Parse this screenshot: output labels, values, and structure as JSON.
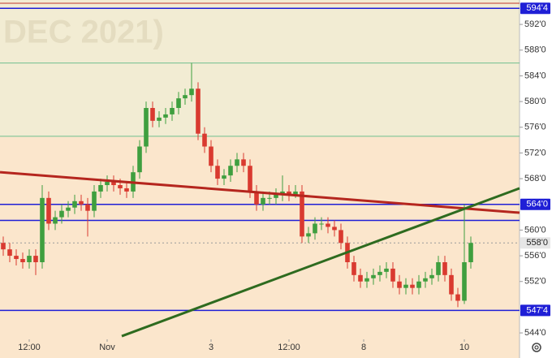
{
  "chart_data": {
    "type": "candlestick",
    "watermark": "DEC 2021)",
    "xlim": [
      -0.5,
      79.5
    ],
    "ylim": [
      543.0,
      595.8
    ],
    "xticks": [
      {
        "value": 4,
        "label": "12:00"
      },
      {
        "value": 16,
        "label": "Nov"
      },
      {
        "value": 32,
        "label": "3"
      },
      {
        "value": 44,
        "label": "12:00"
      },
      {
        "value": 55.5,
        "label": "8"
      },
      {
        "value": 71,
        "label": "10"
      }
    ],
    "yticks": [
      {
        "value": 544,
        "label": "544'0"
      },
      {
        "value": 552,
        "label": "552'0"
      },
      {
        "value": 556,
        "label": "556'0"
      },
      {
        "value": 560,
        "label": "560'0"
      },
      {
        "value": 568,
        "label": "568'0"
      },
      {
        "value": 572,
        "label": "572'0"
      },
      {
        "value": 576,
        "label": "576'0"
      },
      {
        "value": 580,
        "label": "580'0"
      },
      {
        "value": 584,
        "label": "584'0"
      },
      {
        "value": 588,
        "label": "588'0"
      },
      {
        "value": 592,
        "label": "592'0"
      }
    ],
    "up_color": "#3f9f3f",
    "down_color": "#d93a30",
    "open": [
      558,
      557,
      556,
      555.5,
      555,
      556,
      555,
      565,
      561,
      562,
      563,
      563.5,
      564.5,
      564,
      563,
      566,
      567,
      567.5,
      567,
      566.5,
      566,
      569,
      573,
      579,
      577,
      577.5,
      578,
      579,
      580.5,
      581,
      582,
      575,
      573,
      570,
      568,
      568.5,
      570,
      571,
      570,
      566,
      564,
      565,
      565,
      565.5,
      566,
      565.5,
      566,
      559,
      559.5,
      561,
      561,
      560.5,
      560,
      558,
      555,
      553,
      552,
      552.5,
      553,
      553.5,
      554,
      552,
      551,
      551.5,
      551,
      552,
      552.5,
      553,
      555,
      553,
      550,
      549,
      555
    ],
    "high": [
      559,
      558,
      557,
      556.5,
      557,
      557,
      567,
      566,
      563,
      564,
      564.5,
      565.5,
      565.5,
      565,
      567,
      568,
      568.5,
      568.5,
      568,
      567.5,
      570,
      574,
      580,
      580,
      578.5,
      579,
      580,
      581.5,
      582,
      586,
      583,
      576,
      574,
      571,
      569.5,
      571,
      572,
      572,
      571,
      567,
      566,
      566,
      566.5,
      568.5,
      567,
      567,
      567,
      560.5,
      562,
      562,
      562,
      561.5,
      561,
      559,
      556,
      554,
      553.5,
      554,
      554.5,
      555,
      555,
      553,
      552.5,
      552.5,
      553,
      553.5,
      554,
      556,
      556,
      554,
      551,
      564,
      559
    ],
    "low": [
      556,
      555,
      554.5,
      554,
      554,
      553,
      554,
      560,
      560,
      561,
      562,
      562.5,
      563,
      559,
      562,
      565,
      566,
      566,
      565.5,
      565,
      565,
      568,
      572,
      576,
      576,
      576.5,
      577,
      578,
      579.5,
      580,
      574,
      572,
      569,
      567,
      567,
      567.5,
      569,
      569,
      565,
      563,
      563,
      564,
      564,
      564.5,
      564.5,
      565,
      558,
      558,
      558.5,
      560,
      559.5,
      559,
      557,
      554,
      552,
      551,
      551,
      551.5,
      552,
      552.5,
      551,
      550,
      550,
      550,
      550,
      551,
      551.5,
      552,
      552,
      549,
      548,
      548.5,
      554
    ],
    "close": [
      557,
      556,
      555.5,
      555,
      556,
      555,
      565,
      561,
      562,
      563,
      563.5,
      564.5,
      564,
      563,
      566,
      567,
      567.5,
      567,
      566.5,
      566,
      569,
      573,
      579,
      577,
      577.5,
      578,
      579,
      580.5,
      581,
      582,
      575,
      573,
      570,
      568,
      568.5,
      570,
      571,
      570,
      566,
      564,
      565,
      565,
      565.5,
      566,
      565.5,
      566,
      559,
      559.5,
      561,
      561,
      560.5,
      560,
      558,
      555,
      553,
      552,
      552.5,
      553,
      553.5,
      554,
      552,
      551,
      551.5,
      551,
      552,
      552.5,
      553,
      555,
      553,
      550,
      549,
      555,
      558
    ],
    "hlines": [
      {
        "value": 595.3,
        "color": "#c0392b"
      },
      {
        "value": 594.5,
        "label": "594'4",
        "color": "#1f1fd6"
      },
      {
        "value": 586,
        "color": "#6fbf8f"
      },
      {
        "value": 574.6,
        "color": "#6fbf8f"
      },
      {
        "value": 564,
        "label": "564'0",
        "color": "#1f1fd6"
      },
      {
        "value": 561.5,
        "color": "#1f1fd6"
      },
      {
        "value": 558,
        "label": "558'0",
        "color": "#9a9a9a",
        "dashed": true
      },
      {
        "value": 547.5,
        "label": "547'4",
        "color": "#1f1fd6"
      }
    ],
    "trendlines": [
      {
        "x": [
          -0.5,
          79.5
        ],
        "y": [
          569,
          562.7
        ],
        "color": "#b5261e"
      },
      {
        "x": [
          18.25,
          79.5
        ],
        "y": [
          543.5,
          566.5
        ],
        "color": "#2e6b1f"
      }
    ]
  }
}
